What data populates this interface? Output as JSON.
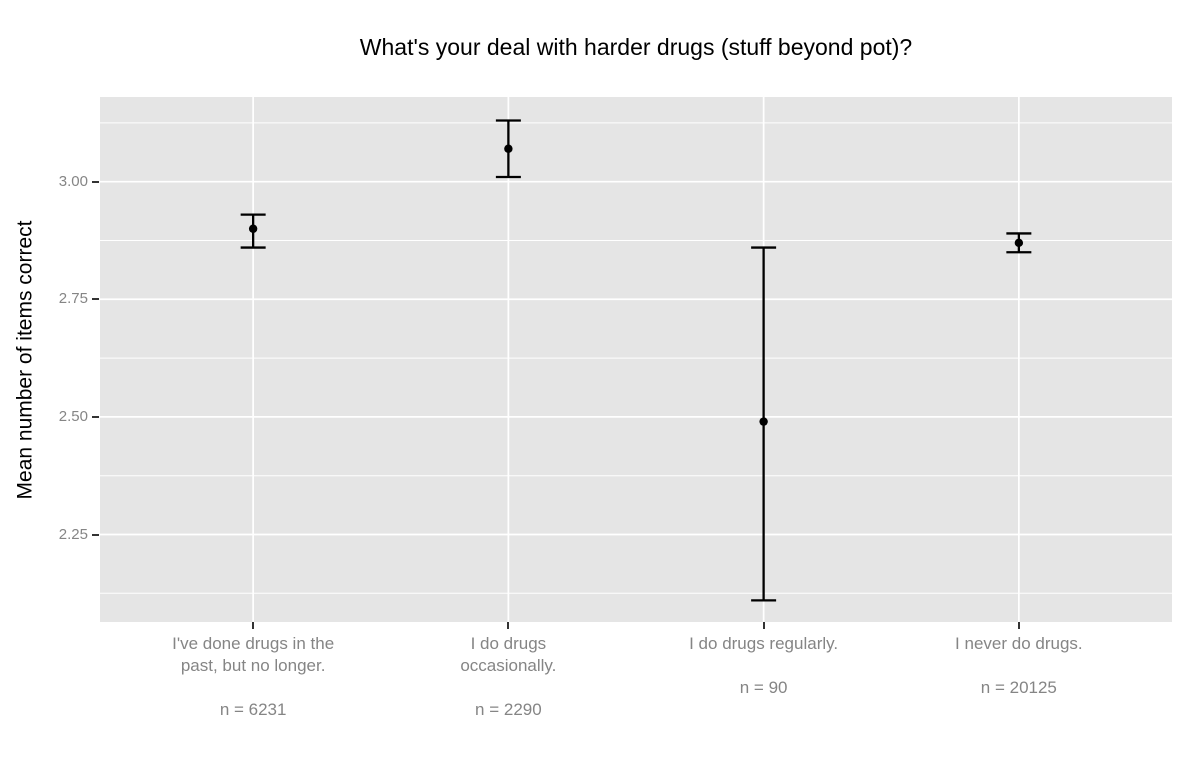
{
  "chart_data": {
    "type": "errorbar",
    "title": "What's your deal with harder drugs (stuff beyond pot)?",
    "ylabel": "Mean number of items correct",
    "xlabel": "",
    "ylim": [
      2.064,
      3.18
    ],
    "grid": true,
    "legend_position": "none",
    "yticks": [
      {
        "value": 3.0,
        "label": "3.00"
      },
      {
        "value": 2.75,
        "label": "2.75"
      },
      {
        "value": 2.5,
        "label": "2.50"
      },
      {
        "value": 2.25,
        "label": "2.25"
      }
    ],
    "yminor": [
      3.125,
      2.875,
      2.625,
      2.375,
      2.125
    ],
    "categories": [
      {
        "label": "I've done drugs in the past, but no longer.",
        "label_lines": [
          "I've done drugs in the",
          "past, but no longer."
        ],
        "n": 6231,
        "n_label": "n = 6231",
        "mean": 2.9,
        "ci_low": 2.86,
        "ci_high": 2.93
      },
      {
        "label": "I do drugs occasionally.",
        "label_lines": [
          "I do drugs",
          "occasionally."
        ],
        "n": 2290,
        "n_label": "n = 2290",
        "mean": 3.07,
        "ci_low": 3.01,
        "ci_high": 3.13
      },
      {
        "label": "I do drugs regularly.",
        "label_lines": [
          "I do drugs regularly."
        ],
        "n": 90,
        "n_label": "n = 90",
        "mean": 2.49,
        "ci_low": 2.11,
        "ci_high": 2.86
      },
      {
        "label": "I never do drugs.",
        "label_lines": [
          "I never do drugs."
        ],
        "n": 20125,
        "n_label": "n = 20125",
        "mean": 2.87,
        "ci_low": 2.85,
        "ci_high": 2.89
      }
    ],
    "colors": {
      "panel_bg": "#E5E5E5",
      "plot_bg": "#FFFFFF",
      "grid": "#FFFFFF",
      "title_text": "#000000",
      "axis_title_text": "#000000",
      "axis_tick_text": "#858585",
      "tick_mark": "#333333",
      "point": "#000000",
      "errorbar": "#000000"
    }
  }
}
